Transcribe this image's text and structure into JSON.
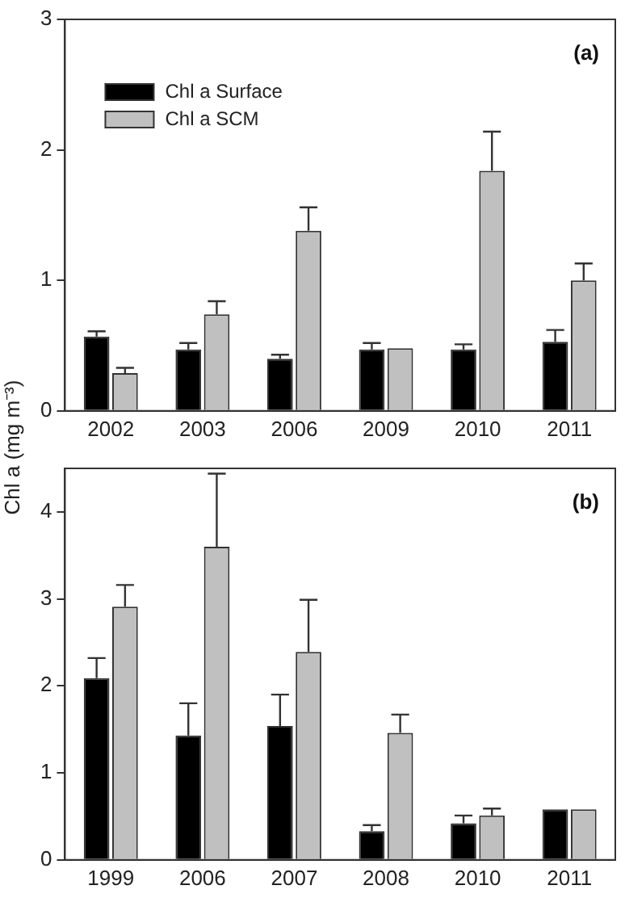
{
  "chart_data": [
    {
      "type": "bar",
      "categories": [
        "2002",
        "2003",
        "2006",
        "2009",
        "2010",
        "2011"
      ],
      "series": [
        {
          "name": "Chl a Surface",
          "color": "#000000",
          "values": [
            0.57,
            0.47,
            0.4,
            0.47,
            0.47,
            0.53
          ],
          "errors": [
            [
              0.57,
              0.61
            ],
            [
              0.47,
              0.52
            ],
            [
              0.4,
              0.43
            ],
            [
              0.47,
              0.52
            ],
            [
              0.47,
              0.51
            ],
            [
              0.53,
              0.62
            ]
          ]
        },
        {
          "name": "Chl a SCM",
          "color": "#c0c0c0",
          "values": [
            0.29,
            0.74,
            1.38,
            0.48,
            1.84,
            1.0
          ],
          "errors": [
            [
              0.29,
              0.33
            ],
            [
              0.74,
              0.84
            ],
            [
              1.38,
              1.56
            ],
            null,
            [
              1.84,
              2.14
            ],
            [
              1.0,
              1.13
            ]
          ]
        }
      ],
      "ylim": [
        0,
        3
      ],
      "yticks": [
        0,
        1,
        2,
        3
      ],
      "grid": false,
      "legend": "top left",
      "annotations": [
        "(a)"
      ]
    },
    {
      "type": "bar",
      "categories": [
        "1999",
        "2006",
        "2007",
        "2008",
        "2010",
        "2011"
      ],
      "series": [
        {
          "color": "#000000",
          "values": [
            2.09,
            1.43,
            1.54,
            0.33,
            0.42,
            0.58
          ],
          "errors": [
            [
              2.09,
              2.32
            ],
            [
              1.43,
              1.8
            ],
            [
              1.54,
              1.9
            ],
            [
              0.33,
              0.4
            ],
            [
              0.42,
              0.51
            ],
            null
          ]
        },
        {
          "color": "#c0c0c0",
          "values": [
            2.91,
            3.6,
            2.39,
            1.46,
            0.51,
            0.58
          ],
          "errors": [
            [
              2.91,
              3.16
            ],
            [
              3.6,
              4.44
            ],
            [
              2.39,
              2.99
            ],
            [
              1.46,
              1.67
            ],
            [
              0.51,
              0.59
            ],
            null
          ]
        }
      ],
      "ylim": [
        0,
        4.5
      ],
      "yticks": [
        0,
        1,
        2,
        3,
        4
      ],
      "grid": false,
      "ylabel": "Chl a (mg m⁻³)",
      "annotations": [
        "(b)"
      ]
    }
  ]
}
